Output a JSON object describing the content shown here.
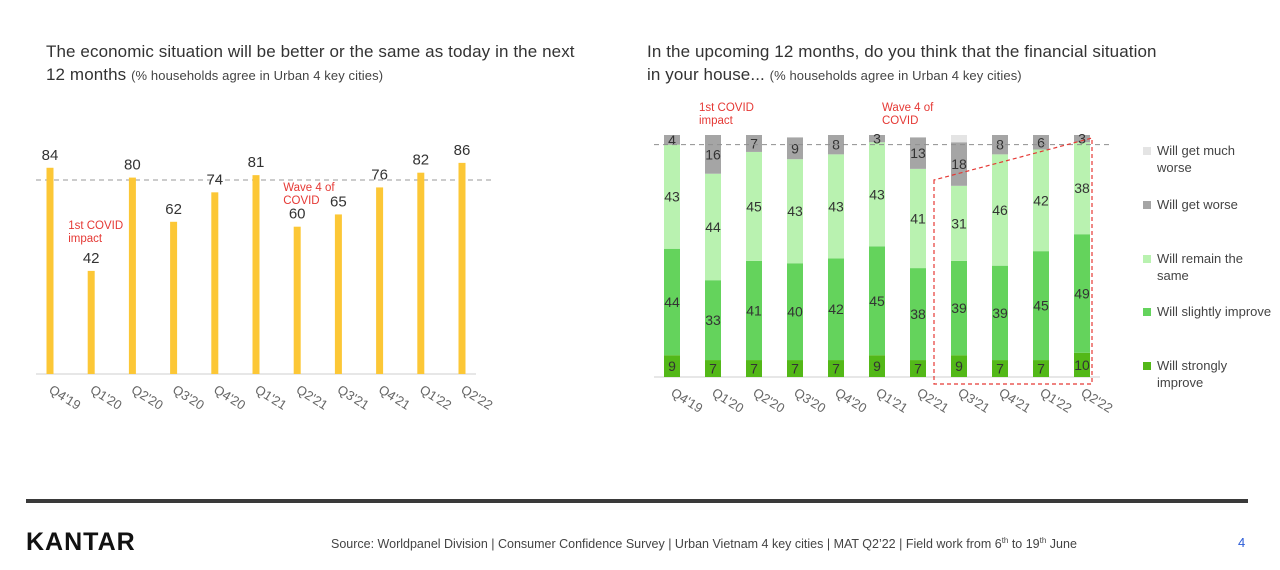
{
  "left": {
    "title_main": "The economic situation will be better or the same as today in the next 12 months",
    "title_sub": "(% households agree in Urban 4 key cities)"
  },
  "right": {
    "title_main": "In the upcoming 12 months, do you think that the financial situation in your house...",
    "title_sub": "(% households agree in Urban 4 key cities)"
  },
  "chart_data": [
    {
      "type": "bar",
      "categories": [
        "Q4'19",
        "Q1'20",
        "Q2'20",
        "Q3'20",
        "Q4'20",
        "Q1'21",
        "Q2'21",
        "Q3'21",
        "Q4'21",
        "Q1'22",
        "Q2'22"
      ],
      "values": [
        84,
        42,
        80,
        62,
        74,
        81,
        60,
        65,
        76,
        82,
        86
      ],
      "reference_line": 79,
      "ylim": [
        0,
        100
      ],
      "bar_color": "#fcc736",
      "annotations": [
        {
          "text": "1st COVID impact",
          "category": "Q1'20",
          "color": "#e53935"
        },
        {
          "text": "Wave 4 of COVID",
          "category": "Q2'21",
          "color": "#e53935"
        }
      ]
    },
    {
      "type": "bar",
      "stacked": true,
      "categories": [
        "Q4'19",
        "Q1'20",
        "Q2'20",
        "Q3'20",
        "Q4'20",
        "Q1'21",
        "Q2'21",
        "Q3'21",
        "Q4'21",
        "Q1'22",
        "Q2'22"
      ],
      "series": [
        {
          "name": "Will strongly improve",
          "color": "#53b818",
          "values": [
            9,
            7,
            7,
            7,
            7,
            9,
            7,
            9,
            7,
            7,
            10
          ]
        },
        {
          "name": "Will slightly improve",
          "color": "#64d35c",
          "values": [
            44,
            33,
            41,
            40,
            42,
            45,
            38,
            39,
            39,
            45,
            49
          ]
        },
        {
          "name": "Will remain the same",
          "color": "#b9f2b0",
          "values": [
            43,
            44,
            45,
            43,
            43,
            43,
            41,
            31,
            46,
            42,
            38
          ]
        },
        {
          "name": "Will get worse",
          "color": "#a5a5a5",
          "values": [
            4,
            16,
            7,
            9,
            8,
            3,
            13,
            18,
            8,
            6,
            3
          ]
        },
        {
          "name": "Will get much worse",
          "color": "#e4e4e4",
          "values": [
            0,
            0,
            0,
            0,
            0,
            0,
            0,
            3,
            0,
            0,
            0
          ]
        }
      ],
      "reference_line": 96,
      "ylim": [
        0,
        100
      ],
      "highlight_categories": [
        "Q3'21",
        "Q4'21",
        "Q1'22",
        "Q2'22"
      ],
      "annotations": [
        {
          "text": "1st COVID impact",
          "category": "Q1'20",
          "color": "#e53935"
        },
        {
          "text": "Wave 4 of COVID",
          "category": "Q2'21",
          "color": "#e53935"
        }
      ]
    }
  ],
  "legend": [
    {
      "label": "Will get much worse",
      "color": "#e4e4e4"
    },
    {
      "label": "Will get worse",
      "color": "#a5a5a5"
    },
    {
      "label": "Will remain the same",
      "color": "#b9f2b0"
    },
    {
      "label": "Will slightly improve",
      "color": "#64d35c"
    },
    {
      "label": "Will strongly improve",
      "color": "#53b818"
    }
  ],
  "footer": {
    "logo": "KANTAR",
    "source_a": "Source: Worldpanel Division | Consumer Confidence Survey | Urban Vietnam 4 key cities | MAT Q2’22 | Field work from 6",
    "source_sup1": "th",
    "source_b": " to 19",
    "source_sup2": "th",
    "source_c": " June",
    "page": "4"
  }
}
